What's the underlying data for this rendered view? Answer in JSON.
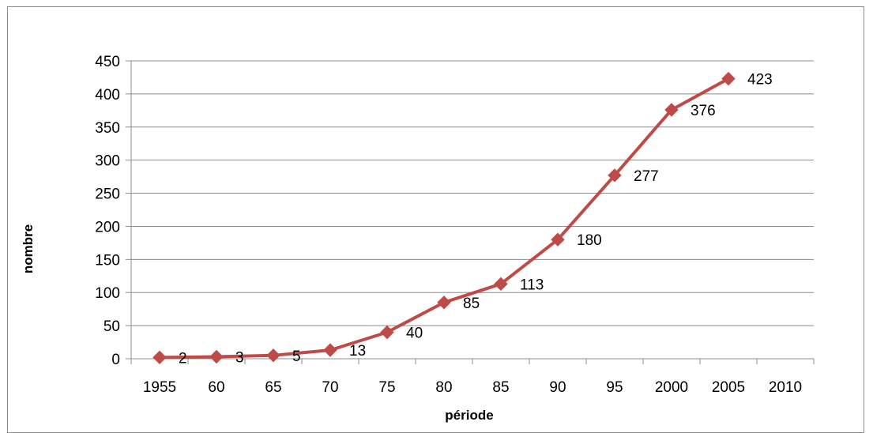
{
  "chart_data": {
    "type": "line",
    "title": "",
    "xlabel": "période",
    "ylabel": "nombre",
    "categories": [
      "1955",
      "60",
      "65",
      "70",
      "75",
      "80",
      "85",
      "90",
      "95",
      "2000",
      "2005",
      "2010"
    ],
    "series": [
      {
        "values": [
          2,
          3,
          5,
          13,
          40,
          85,
          113,
          180,
          277,
          376,
          423,
          null
        ]
      }
    ],
    "ylim": [
      0,
      450
    ],
    "yticks": [
      0,
      50,
      100,
      150,
      200,
      250,
      300,
      350,
      400,
      450
    ],
    "grid": true,
    "legend": "none",
    "colors": {
      "series": "#be4b48",
      "grid": "#8c8c8c",
      "axis": "#8c8c8c"
    },
    "marker": "diamond",
    "data_labels": true
  }
}
